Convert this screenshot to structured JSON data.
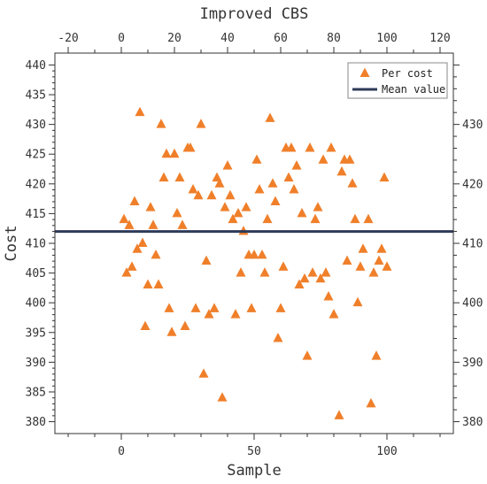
{
  "colors": {
    "marker": "#f07f2a",
    "mean_line": "#2e3a59",
    "axis": "#333333"
  },
  "chart_data": {
    "type": "scatter",
    "title": "",
    "top_axis_label": "Improved CBS",
    "xlabel": "Sample",
    "ylabel": "Cost",
    "bottom_xticks": [
      "0",
      "50",
      "100"
    ],
    "top_xticks": [
      "-20",
      "0",
      "20",
      "40",
      "60",
      "80",
      "100",
      "120"
    ],
    "left_yticks": [
      "380",
      "385",
      "390",
      "395",
      "400",
      "405",
      "410",
      "415",
      "420",
      "425",
      "430",
      "435",
      "440"
    ],
    "right_yticks": [
      "380",
      "390",
      "400",
      "410",
      "420",
      "430"
    ],
    "xlim": [
      -25,
      125
    ],
    "ylim": [
      378,
      442
    ],
    "grid": false,
    "legend_position": "top-right",
    "mean_value": 412,
    "series": [
      {
        "name": "Per cost",
        "marker": "triangle",
        "points": [
          [
            1,
            414
          ],
          [
            2,
            405
          ],
          [
            3,
            413
          ],
          [
            4,
            406
          ],
          [
            5,
            417
          ],
          [
            6,
            409
          ],
          [
            7,
            432
          ],
          [
            8,
            410
          ],
          [
            9,
            396
          ],
          [
            10,
            403
          ],
          [
            11,
            416
          ],
          [
            12,
            413
          ],
          [
            13,
            408
          ],
          [
            14,
            403
          ],
          [
            15,
            430
          ],
          [
            16,
            421
          ],
          [
            17,
            425
          ],
          [
            18,
            399
          ],
          [
            19,
            395
          ],
          [
            20,
            425
          ],
          [
            21,
            415
          ],
          [
            22,
            421
          ],
          [
            23,
            413
          ],
          [
            24,
            396
          ],
          [
            25,
            426
          ],
          [
            26,
            426
          ],
          [
            27,
            419
          ],
          [
            28,
            399
          ],
          [
            29,
            418
          ],
          [
            30,
            430
          ],
          [
            31,
            388
          ],
          [
            32,
            407
          ],
          [
            33,
            398
          ],
          [
            34,
            418
          ],
          [
            35,
            399
          ],
          [
            36,
            421
          ],
          [
            37,
            420
          ],
          [
            38,
            384
          ],
          [
            39,
            416
          ],
          [
            40,
            423
          ],
          [
            41,
            418
          ],
          [
            42,
            414
          ],
          [
            43,
            398
          ],
          [
            44,
            415
          ],
          [
            45,
            405
          ],
          [
            46,
            412
          ],
          [
            47,
            416
          ],
          [
            48,
            408
          ],
          [
            49,
            399
          ],
          [
            50,
            408
          ],
          [
            51,
            424
          ],
          [
            52,
            419
          ],
          [
            53,
            408
          ],
          [
            54,
            405
          ],
          [
            55,
            414
          ],
          [
            56,
            431
          ],
          [
            57,
            420
          ],
          [
            58,
            417
          ],
          [
            59,
            394
          ],
          [
            60,
            399
          ],
          [
            61,
            406
          ],
          [
            62,
            426
          ],
          [
            63,
            421
          ],
          [
            64,
            426
          ],
          [
            65,
            419
          ],
          [
            66,
            423
          ],
          [
            67,
            403
          ],
          [
            68,
            415
          ],
          [
            69,
            404
          ],
          [
            70,
            391
          ],
          [
            71,
            426
          ],
          [
            72,
            405
          ],
          [
            73,
            414
          ],
          [
            74,
            416
          ],
          [
            75,
            404
          ],
          [
            76,
            424
          ],
          [
            77,
            405
          ],
          [
            78,
            401
          ],
          [
            79,
            426
          ],
          [
            80,
            398
          ],
          [
            82,
            381
          ],
          [
            83,
            422
          ],
          [
            84,
            424
          ],
          [
            85,
            407
          ],
          [
            86,
            424
          ],
          [
            87,
            420
          ],
          [
            88,
            414
          ],
          [
            89,
            400
          ],
          [
            90,
            406
          ],
          [
            91,
            409
          ],
          [
            93,
            414
          ],
          [
            94,
            383
          ],
          [
            95,
            405
          ],
          [
            96,
            391
          ],
          [
            97,
            407
          ],
          [
            98,
            409
          ],
          [
            99,
            421
          ],
          [
            100,
            406
          ]
        ]
      },
      {
        "name": "Mean value",
        "type": "line",
        "value": 412
      }
    ]
  }
}
